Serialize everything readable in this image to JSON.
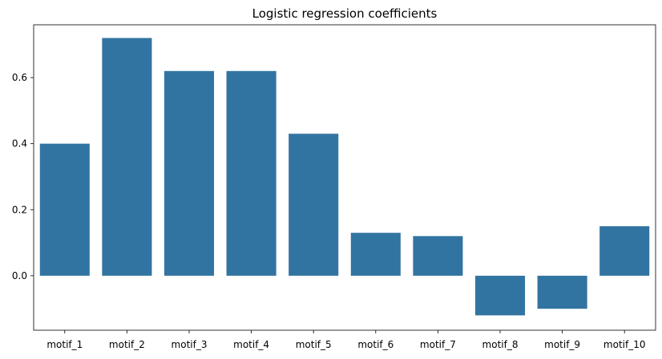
{
  "chart_data": {
    "type": "bar",
    "title": "Logistic regression coefficients",
    "xlabel": "",
    "ylabel": "",
    "categories": [
      "motif_1",
      "motif_2",
      "motif_3",
      "motif_4",
      "motif_5",
      "motif_6",
      "motif_7",
      "motif_8",
      "motif_9",
      "motif_10"
    ],
    "values": [
      0.4,
      0.72,
      0.62,
      0.62,
      0.43,
      0.13,
      0.12,
      -0.12,
      -0.1,
      0.15
    ],
    "ylim": [
      -0.165,
      0.76
    ],
    "yticks": [
      0.0,
      0.2,
      0.4,
      0.6
    ],
    "ytick_labels": [
      "0.0",
      "0.2",
      "0.4",
      "0.6"
    ],
    "bar_color": "#3274a1",
    "grid": false,
    "legend": "none"
  }
}
